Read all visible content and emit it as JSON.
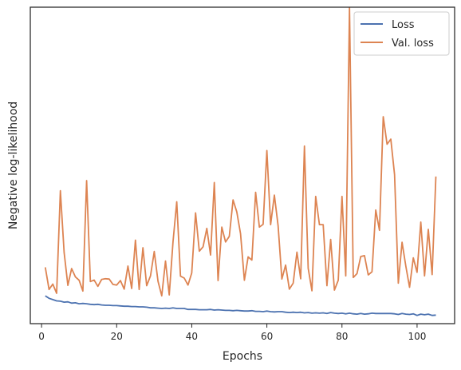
{
  "chart_data": {
    "type": "line",
    "xlabel": "Epochs",
    "ylabel": "Negative log-likelihood",
    "xlim": [
      -3,
      110
    ],
    "ylim": [
      0,
      100
    ],
    "xticks": [
      0,
      20,
      40,
      60,
      80,
      100
    ],
    "xtick_labels": [
      "0",
      "20",
      "40",
      "60",
      "80",
      "100"
    ],
    "show_y_tick_labels": false,
    "grid": false,
    "legend_position": "top-right",
    "series": [
      {
        "name": "Loss",
        "color": "#4c72b0",
        "x": [
          1,
          2,
          3,
          4,
          5,
          6,
          7,
          8,
          9,
          10,
          11,
          12,
          13,
          14,
          15,
          16,
          17,
          18,
          19,
          20,
          21,
          22,
          23,
          24,
          25,
          26,
          27,
          28,
          29,
          30,
          31,
          32,
          33,
          34,
          35,
          36,
          37,
          38,
          39,
          40,
          41,
          42,
          43,
          44,
          45,
          46,
          47,
          48,
          49,
          50,
          51,
          52,
          53,
          54,
          55,
          56,
          57,
          58,
          59,
          60,
          61,
          62,
          63,
          64,
          65,
          66,
          67,
          68,
          69,
          70,
          71,
          72,
          73,
          74,
          75,
          76,
          77,
          78,
          79,
          80,
          81,
          82,
          83,
          84,
          85,
          86,
          87,
          88,
          89,
          90,
          91,
          92,
          93,
          94,
          95,
          96,
          97,
          98,
          99,
          100,
          101,
          102,
          103,
          104,
          105
        ],
        "y": [
          8.8,
          8.0,
          7.6,
          7.2,
          7.1,
          6.8,
          6.9,
          6.5,
          6.6,
          6.3,
          6.4,
          6.3,
          6.1,
          6.0,
          6.1,
          5.9,
          5.8,
          5.8,
          5.7,
          5.7,
          5.6,
          5.5,
          5.5,
          5.4,
          5.4,
          5.3,
          5.3,
          5.2,
          5.0,
          5.0,
          4.9,
          4.8,
          4.9,
          4.8,
          5.0,
          4.8,
          4.8,
          4.8,
          4.5,
          4.5,
          4.5,
          4.4,
          4.4,
          4.4,
          4.5,
          4.3,
          4.4,
          4.3,
          4.2,
          4.2,
          4.1,
          4.2,
          4.1,
          4.0,
          4.0,
          4.1,
          3.9,
          3.9,
          3.8,
          4.0,
          3.8,
          3.7,
          3.8,
          3.8,
          3.6,
          3.5,
          3.6,
          3.5,
          3.6,
          3.4,
          3.5,
          3.3,
          3.4,
          3.3,
          3.4,
          3.2,
          3.5,
          3.3,
          3.2,
          3.3,
          3.1,
          3.3,
          3.1,
          3.0,
          3.2,
          3.0,
          3.1,
          3.3,
          3.2,
          3.2,
          3.2,
          3.2,
          3.2,
          3.1,
          2.9,
          3.2,
          3.0,
          2.9,
          3.1,
          2.6,
          3.0,
          2.8,
          3.0,
          2.6,
          2.7
        ]
      },
      {
        "name": "Val. loss",
        "color": "#dd8452",
        "x": [
          1,
          2,
          3,
          4,
          5,
          6,
          7,
          8,
          9,
          10,
          11,
          12,
          13,
          14,
          15,
          16,
          17,
          18,
          19,
          20,
          21,
          22,
          23,
          24,
          25,
          26,
          27,
          28,
          29,
          30,
          31,
          32,
          33,
          34,
          35,
          36,
          37,
          38,
          39,
          40,
          41,
          42,
          43,
          44,
          45,
          46,
          47,
          48,
          49,
          50,
          51,
          52,
          53,
          54,
          55,
          56,
          57,
          58,
          59,
          60,
          61,
          62,
          63,
          64,
          65,
          66,
          67,
          68,
          69,
          70,
          71,
          72,
          73,
          74,
          75,
          76,
          77,
          78,
          79,
          80,
          81,
          82,
          83,
          84,
          85,
          86,
          87,
          88,
          89,
          90,
          91,
          92,
          93,
          94,
          95,
          96,
          97,
          98,
          99,
          100,
          101,
          102,
          103,
          104,
          105
        ],
        "y": [
          17.8,
          10.8,
          12.5,
          9.6,
          42.0,
          22.5,
          12.1,
          17.4,
          14.8,
          13.7,
          10.3,
          45.2,
          13.3,
          13.8,
          11.8,
          14.0,
          14.2,
          14.1,
          12.4,
          12.2,
          13.6,
          10.9,
          18.2,
          11.1,
          26.4,
          10.8,
          24.0,
          12.0,
          15.1,
          22.8,
          13.4,
          8.8,
          19.8,
          9.1,
          25.8,
          38.5,
          15.0,
          14.4,
          12.2,
          16.0,
          35.0,
          22.9,
          24.3,
          30.1,
          21.7,
          44.6,
          13.6,
          30.5,
          25.8,
          27.6,
          39.1,
          35.3,
          28.4,
          13.7,
          21.1,
          20.1,
          41.5,
          30.5,
          31.4,
          54.7,
          31.3,
          40.6,
          30.9,
          14.1,
          18.5,
          10.9,
          12.8,
          22.6,
          14.2,
          56.1,
          17.5,
          10.4,
          40.2,
          31.3,
          31.3,
          12.0,
          26.6,
          10.6,
          13.7,
          40.2,
          15.1,
          99.8,
          14.6,
          15.8,
          21.2,
          21.5,
          15.4,
          16.4,
          35.9,
          29.5,
          65.4,
          56.7,
          58.3,
          47.1,
          12.8,
          25.7,
          18.2,
          11.5,
          20.8,
          16.2,
          32.1,
          15.1,
          29.8,
          15.5,
          46.5
        ]
      }
    ]
  }
}
